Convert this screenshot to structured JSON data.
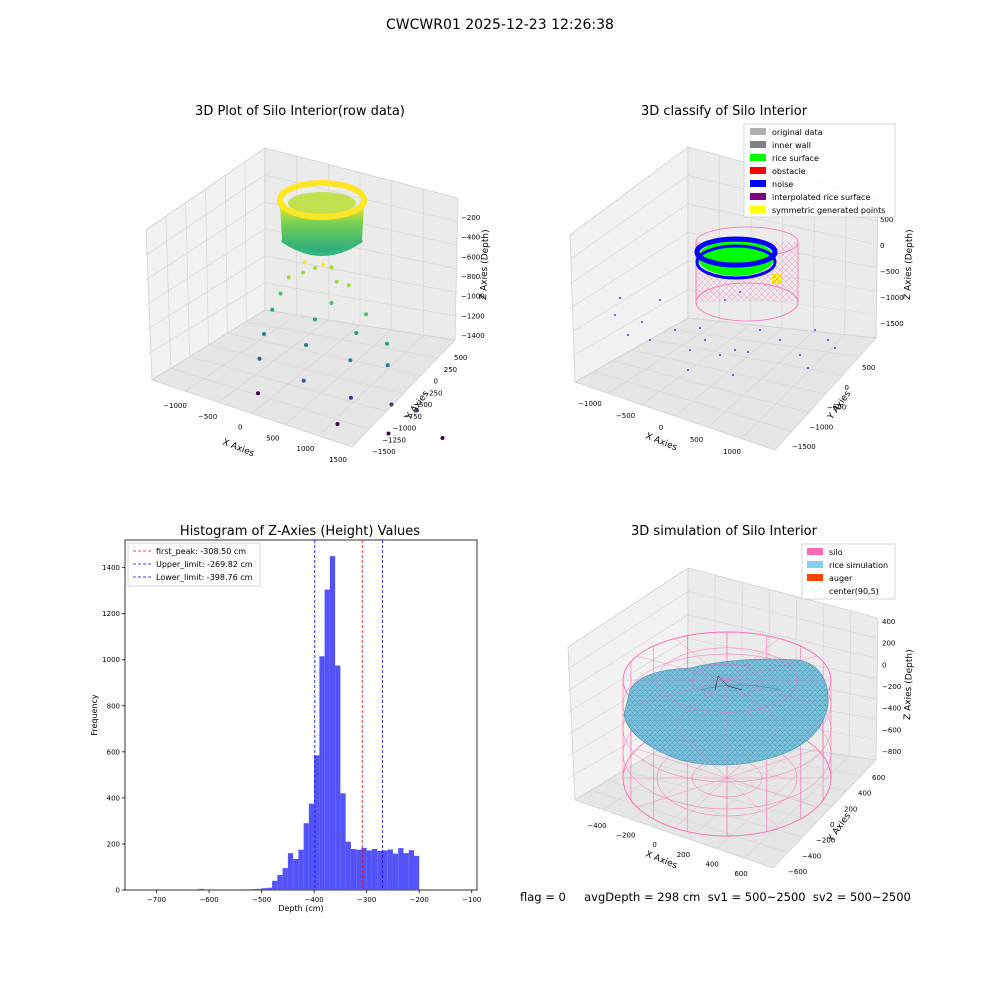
{
  "suptitle": "CWCWR01 2025-12-23 12:26:38",
  "colors": {
    "original": "#b0b0b0",
    "inner_wall": "#808080",
    "rice_surface": "#00ff00",
    "obstacle": "#ff0000",
    "noise": "#0000ff",
    "interpolated": "#800080",
    "symmetric": "#ffff00",
    "silo": "#ff69b4",
    "rice_sim": "#87cefa",
    "auger": "#ff4500",
    "hist_bar": "#4a4af7",
    "peak_line": "#ff0000",
    "limit_line": "#0000ff"
  },
  "footer": {
    "text": "flag = 0     avgDepth = 298 cm  sv1 = 500~2500  sv2 = 500~2500"
  },
  "chart_data": [
    {
      "type": "scatter",
      "title": "3D Plot of Silo Interior(row data)",
      "xlabel": "X Axies",
      "ylabel": "Y Axies",
      "zlabel": "Z Axies (Depth)",
      "x_ticks": [
        "−1000",
        "−500",
        "0",
        "500",
        "1000",
        "1500"
      ],
      "y_ticks": [
        "500",
        "250",
        "0",
        "−250",
        "−500",
        "−750",
        "−1000",
        "−1250",
        "−1500"
      ],
      "z_ticks": [
        "−200",
        "−400",
        "−600",
        "−800",
        "−1000",
        "−1200",
        "−1400"
      ],
      "colormap": "viridis",
      "points": [
        {
          "x": -100,
          "y": -200,
          "z": -600
        },
        {
          "x": 0,
          "y": -250,
          "z": -620
        },
        {
          "x": 150,
          "y": -200,
          "z": -600
        },
        {
          "x": 300,
          "y": -150,
          "z": -620
        },
        {
          "x": -200,
          "y": -300,
          "z": -650
        },
        {
          "x": 250,
          "y": -300,
          "z": -680
        },
        {
          "x": -350,
          "y": -250,
          "z": -700
        },
        {
          "x": 450,
          "y": -250,
          "z": -700
        },
        {
          "x": -500,
          "y": -300,
          "z": -800
        },
        {
          "x": 100,
          "y": -400,
          "z": -800
        },
        {
          "x": 600,
          "y": -350,
          "z": -850
        },
        {
          "x": -650,
          "y": -350,
          "z": -900
        },
        {
          "x": -200,
          "y": -500,
          "z": -900
        },
        {
          "x": 350,
          "y": -500,
          "z": -950
        },
        {
          "x": 800,
          "y": -450,
          "z": -1000
        },
        {
          "x": -800,
          "y": -400,
          "z": -1050
        },
        {
          "x": -400,
          "y": -600,
          "z": -1050
        },
        {
          "x": 150,
          "y": -650,
          "z": -1100
        },
        {
          "x": 650,
          "y": -650,
          "z": -1100
        },
        {
          "x": -900,
          "y": -450,
          "z": -1200
        },
        {
          "x": -550,
          "y": -750,
          "z": -1250
        },
        {
          "x": 0,
          "y": -850,
          "z": -1300
        },
        {
          "x": 500,
          "y": -900,
          "z": -1300
        },
        {
          "x": 1000,
          "y": -700,
          "z": -1350
        },
        {
          "x": -1000,
          "y": -550,
          "z": -1400
        },
        {
          "x": -300,
          "y": -1000,
          "z": -1450
        },
        {
          "x": 300,
          "y": -1100,
          "z": -1450
        },
        {
          "x": 1100,
          "y": -1000,
          "z": -1450
        }
      ]
    },
    {
      "type": "scatter",
      "title": "3D classify of Silo Interior",
      "xlabel": "X Axies",
      "ylabel": "Y Axies",
      "zlabel": "Z Axies (Depth)",
      "x_ticks": [
        "−1000",
        "−500",
        "0",
        "500",
        "1000"
      ],
      "y_ticks": [
        "500",
        "0",
        "−500",
        "−1000",
        "−1500"
      ],
      "z_ticks": [
        "500",
        "0",
        "−500",
        "−1000",
        "−1500"
      ],
      "legend": [
        "original data",
        "inner wall",
        "rice surface",
        "obstacle",
        "noise",
        "interpolated rice surface",
        "symmetric generated points"
      ],
      "legend_loc": "upper right"
    },
    {
      "type": "bar",
      "title": "Histogram of Z-Axies (Height) Values",
      "xlabel": "Depth (cm)",
      "ylabel": "Frequency",
      "xlim": [
        -760,
        -90
      ],
      "ylim": [
        0,
        1520
      ],
      "x_ticks": [
        -700,
        -600,
        -500,
        -400,
        -300,
        -200,
        -100
      ],
      "y_ticks": [
        0,
        200,
        400,
        600,
        800,
        1000,
        1200,
        1400
      ],
      "bin_width": 10,
      "bins": [
        {
          "x": -620,
          "v": 5
        },
        {
          "x": -540,
          "v": 3
        },
        {
          "x": -530,
          "v": 3
        },
        {
          "x": -520,
          "v": 4
        },
        {
          "x": -510,
          "v": 5
        },
        {
          "x": -500,
          "v": 8
        },
        {
          "x": -490,
          "v": 10
        },
        {
          "x": -480,
          "v": 40
        },
        {
          "x": -470,
          "v": 65
        },
        {
          "x": -460,
          "v": 95
        },
        {
          "x": -450,
          "v": 160
        },
        {
          "x": -440,
          "v": 135
        },
        {
          "x": -430,
          "v": 175
        },
        {
          "x": -420,
          "v": 290
        },
        {
          "x": -410,
          "v": 375
        },
        {
          "x": -400,
          "v": 585
        },
        {
          "x": -390,
          "v": 1015
        },
        {
          "x": -380,
          "v": 1305
        },
        {
          "x": -370,
          "v": 1450
        },
        {
          "x": -360,
          "v": 975
        },
        {
          "x": -350,
          "v": 420
        },
        {
          "x": -340,
          "v": 210
        },
        {
          "x": -330,
          "v": 178
        },
        {
          "x": -320,
          "v": 175
        },
        {
          "x": -310,
          "v": 183
        },
        {
          "x": -300,
          "v": 172
        },
        {
          "x": -290,
          "v": 178
        },
        {
          "x": -280,
          "v": 170
        },
        {
          "x": -270,
          "v": 172
        },
        {
          "x": -260,
          "v": 176
        },
        {
          "x": -250,
          "v": 158
        },
        {
          "x": -240,
          "v": 182
        },
        {
          "x": -230,
          "v": 160
        },
        {
          "x": -220,
          "v": 173
        },
        {
          "x": -210,
          "v": 148
        }
      ],
      "vlines": [
        {
          "label": "first_peak: -308.50 cm",
          "x": -308.5,
          "color_key": "peak_line"
        },
        {
          "label": "Upper_limit: -269.82 cm",
          "x": -269.82,
          "color_key": "limit_line"
        },
        {
          "label": "Lower_limit: -398.76 cm",
          "x": -398.76,
          "color_key": "limit_line"
        }
      ],
      "legend_loc": "upper left"
    },
    {
      "type": "surface",
      "title": "3D simulation of Silo Interior",
      "xlabel": "X Axies",
      "ylabel": "Y Axies",
      "zlabel": "Z Axies (Depth)",
      "x_ticks": [
        "−400",
        "−200",
        "0",
        "200",
        "400",
        "600"
      ],
      "y_ticks": [
        "600",
        "400",
        "200",
        "0",
        "−200",
        "−400",
        "−600"
      ],
      "z_ticks": [
        "400",
        "200",
        "0",
        "−200",
        "−400",
        "−600",
        "−800"
      ],
      "legend": [
        "silo",
        "rice simulation",
        "auger",
        "center(90,5)"
      ],
      "legend_loc": "upper right"
    }
  ]
}
